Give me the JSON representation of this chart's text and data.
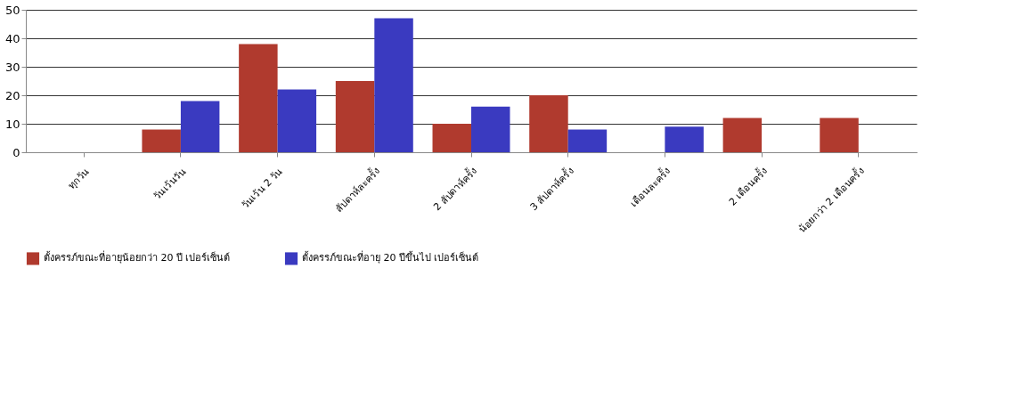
{
  "chart_data": {
    "type": "bar",
    "categories": [
      "ทุกวัน",
      "วันเว้นวัน",
      "วันเว้น 2 วัน",
      "สัปดาห์ละครั้ง",
      "2 สัปดาห์ครั้ง",
      "3 สัปดาห์ครั้ง",
      "เดือนละครั้ง",
      "2 เดือนครั้ง",
      "น้อยกว่า 2 เดือนครั้ง"
    ],
    "series": [
      {
        "name": "ตั้งครรภ์ขณะที่อายุน้อยกว่า 20 ปี เปอร์เซ็นต์",
        "color": "#b03a2e",
        "values": [
          0,
          8,
          38,
          25,
          10,
          20,
          0,
          12,
          12
        ]
      },
      {
        "name": "ตั้งครรภ์ขณะที่อายุ 20 ปีขึ้นไป เปอร์เซ็นต์",
        "color": "#3a3ac0",
        "values": [
          0,
          18,
          22,
          47,
          16,
          8,
          9,
          0,
          0
        ]
      }
    ],
    "ylim": [
      0,
      50
    ],
    "yticks": [
      0,
      10,
      20,
      30,
      40,
      50
    ],
    "grid": "y",
    "legend": "bottom"
  }
}
